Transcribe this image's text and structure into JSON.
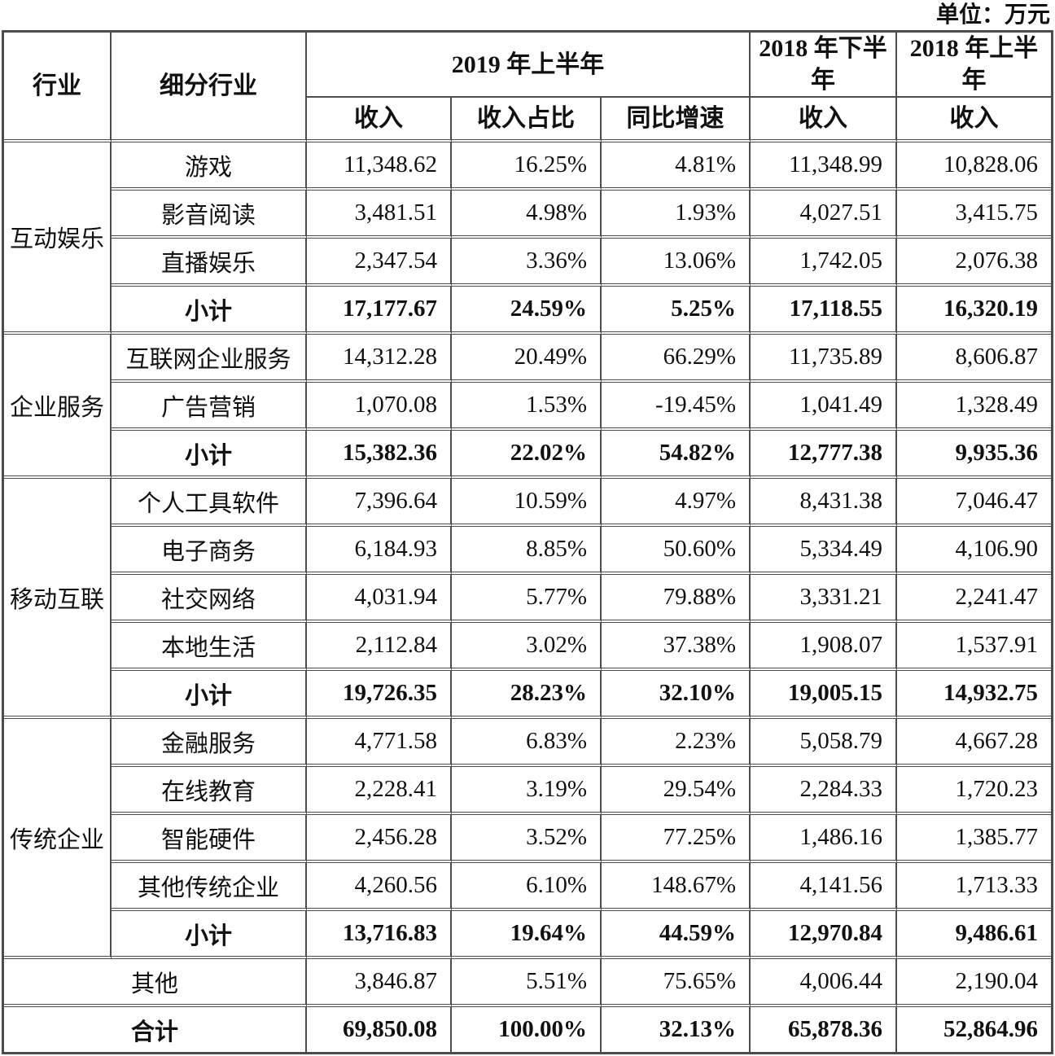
{
  "unit_label": "单位：万元",
  "table": {
    "header_row1": {
      "industry": "行业",
      "sub_industry": "细分行业",
      "h1_2019": "2019 年上半年",
      "h2_2018": "2018 年下半年",
      "h1_2018": "2018 年上半年"
    },
    "header_row2": {
      "revenue": "收入",
      "revenue_share": "收入占比",
      "yoy_growth": "同比增速",
      "revenue_2018h2": "收入",
      "revenue_2018h1": "收入"
    },
    "rows": [
      {
        "industry": "互动娱乐",
        "industry_rowspan": 4,
        "label": "游戏",
        "bold": false,
        "values": [
          "11,348.62",
          "16.25%",
          "4.81%",
          "11,348.99",
          "10,828.06"
        ]
      },
      {
        "label": "影音阅读",
        "bold": false,
        "values": [
          "3,481.51",
          "4.98%",
          "1.93%",
          "4,027.51",
          "3,415.75"
        ]
      },
      {
        "label": "直播娱乐",
        "bold": false,
        "values": [
          "2,347.54",
          "3.36%",
          "13.06%",
          "1,742.05",
          "2,076.38"
        ]
      },
      {
        "label": "小计",
        "bold": true,
        "values": [
          "17,177.67",
          "24.59%",
          "5.25%",
          "17,118.55",
          "16,320.19"
        ]
      },
      {
        "industry": "企业服务",
        "industry_rowspan": 3,
        "label": "互联网企业服务",
        "bold": false,
        "values": [
          "14,312.28",
          "20.49%",
          "66.29%",
          "11,735.89",
          "8,606.87"
        ]
      },
      {
        "label": "广告营销",
        "bold": false,
        "values": [
          "1,070.08",
          "1.53%",
          "-19.45%",
          "1,041.49",
          "1,328.49"
        ]
      },
      {
        "label": "小计",
        "bold": true,
        "values": [
          "15,382.36",
          "22.02%",
          "54.82%",
          "12,777.38",
          "9,935.36"
        ]
      },
      {
        "industry": "移动互联",
        "industry_rowspan": 5,
        "label": "个人工具软件",
        "bold": false,
        "values": [
          "7,396.64",
          "10.59%",
          "4.97%",
          "8,431.38",
          "7,046.47"
        ]
      },
      {
        "label": "电子商务",
        "bold": false,
        "values": [
          "6,184.93",
          "8.85%",
          "50.60%",
          "5,334.49",
          "4,106.90"
        ]
      },
      {
        "label": "社交网络",
        "bold": false,
        "values": [
          "4,031.94",
          "5.77%",
          "79.88%",
          "3,331.21",
          "2,241.47"
        ]
      },
      {
        "label": "本地生活",
        "bold": false,
        "values": [
          "2,112.84",
          "3.02%",
          "37.38%",
          "1,908.07",
          "1,537.91"
        ]
      },
      {
        "label": "小计",
        "bold": true,
        "values": [
          "19,726.35",
          "28.23%",
          "32.10%",
          "19,005.15",
          "14,932.75"
        ]
      },
      {
        "industry": "传统企业",
        "industry_rowspan": 5,
        "label": "金融服务",
        "bold": false,
        "values": [
          "4,771.58",
          "6.83%",
          "2.23%",
          "5,058.79",
          "4,667.28"
        ]
      },
      {
        "label": "在线教育",
        "bold": false,
        "values": [
          "2,228.41",
          "3.19%",
          "29.54%",
          "2,284.33",
          "1,720.23"
        ]
      },
      {
        "label": "智能硬件",
        "bold": false,
        "values": [
          "2,456.28",
          "3.52%",
          "77.25%",
          "1,486.16",
          "1,385.77"
        ]
      },
      {
        "label": "其他传统企业",
        "bold": false,
        "values": [
          "4,260.56",
          "6.10%",
          "148.67%",
          "4,141.56",
          "1,713.33"
        ]
      },
      {
        "label": "小计",
        "bold": true,
        "values": [
          "13,716.83",
          "19.64%",
          "44.59%",
          "12,970.84",
          "9,486.61"
        ]
      },
      {
        "label": "其他",
        "label_colspan": 2,
        "bold": false,
        "values": [
          "3,846.87",
          "5.51%",
          "75.65%",
          "4,006.44",
          "2,190.04"
        ]
      },
      {
        "label": "合计",
        "label_colspan": 2,
        "bold": true,
        "values": [
          "69,850.08",
          "100.00%",
          "32.13%",
          "65,878.36",
          "52,864.96"
        ]
      }
    ]
  }
}
